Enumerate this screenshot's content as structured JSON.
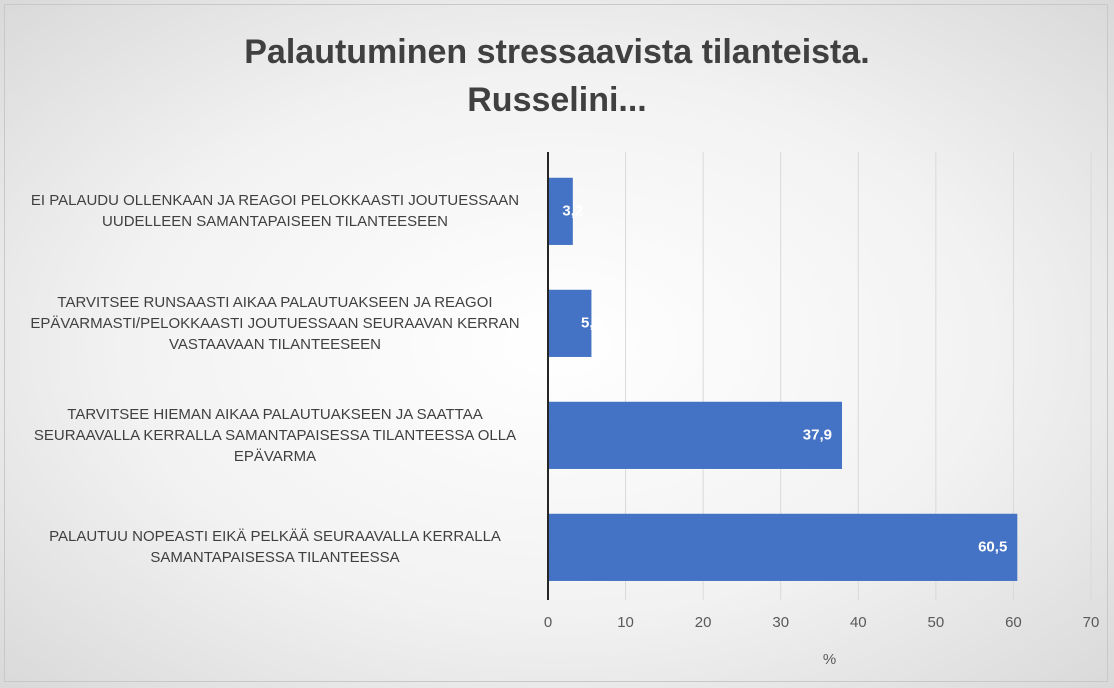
{
  "chart_data": {
    "type": "bar",
    "orientation": "horizontal",
    "title": "Palautuminen stressaavista tilanteista. Russelini...",
    "categories": [
      "EI PALAUDU OLLENKAAN JA REAGOI PELOKKAASTI JOUTUESSAAN UUDELLEEN SAMANTAPAISEEN TILANTEESEEN",
      "TARVITSEE RUNSAASTI AIKAA PALAUTUAKSEEN JA REAGOI EPÄVARMASTI/PELOKKAASTI JOUTUESSAAN SEURAAVAN KERRAN VASTAAVAAN TILANTEESEEN",
      "TARVITSEE HIEMAN AIKAA PALAUTUAKSEEN JA SAATTAA SEURAAVALLA KERRALLA SAMANTAPAISESSA TILANTEESSA OLLA EPÄVARMA",
      "PALAUTUU NOPEASTI EIKÄ PELKÄÄ SEURAAVALLA KERRALLA SAMANTAPAISESSA TILANTEESSA"
    ],
    "values": [
      3.2,
      5.6,
      37.9,
      60.5
    ],
    "value_labels": [
      "3,2",
      "5,6",
      "37,9",
      "60,5"
    ],
    "color": "#4472c4",
    "xlabel": "%",
    "xlim": [
      0,
      70
    ],
    "xticks": [
      0,
      10,
      20,
      30,
      40,
      50,
      60,
      70
    ],
    "grid": true
  }
}
